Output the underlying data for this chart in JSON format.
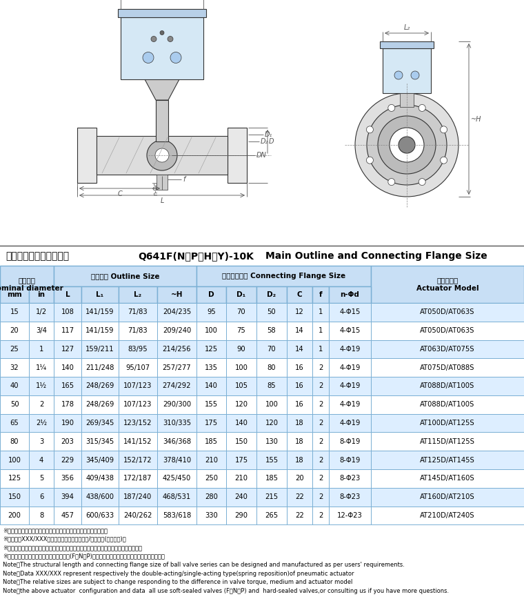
{
  "title_cn": "主要外形及连接法兰尺寸",
  "title_model": "Q641F(N、P、H、Y)-10K",
  "title_en": "Main Outline and Connecting Flange Size",
  "rows": [
    [
      "15",
      "1/2",
      "108",
      "141/159",
      "71/83",
      "204/235",
      "95",
      "70",
      "50",
      "12",
      "1",
      "4-Φ15",
      "AT050D/AT063S"
    ],
    [
      "20",
      "3/4",
      "117",
      "141/159",
      "71/83",
      "209/240",
      "100",
      "75",
      "58",
      "14",
      "1",
      "4-Φ15",
      "AT050D/AT063S"
    ],
    [
      "25",
      "1",
      "127",
      "159/211",
      "83/95",
      "214/256",
      "125",
      "90",
      "70",
      "14",
      "1",
      "4-Φ19",
      "AT063D/AT075S"
    ],
    [
      "32",
      "1¼",
      "140",
      "211/248",
      "95/107",
      "257/277",
      "135",
      "100",
      "80",
      "16",
      "2",
      "4-Φ19",
      "AT075D/AT088S"
    ],
    [
      "40",
      "1½",
      "165",
      "248/269",
      "107/123",
      "274/292",
      "140",
      "105",
      "85",
      "16",
      "2",
      "4-Φ19",
      "AT088D/AT100S"
    ],
    [
      "50",
      "2",
      "178",
      "248/269",
      "107/123",
      "290/300",
      "155",
      "120",
      "100",
      "16",
      "2",
      "4-Φ19",
      "AT088D/AT100S"
    ],
    [
      "65",
      "2½",
      "190",
      "269/345",
      "123/152",
      "310/335",
      "175",
      "140",
      "120",
      "18",
      "2",
      "4-Φ19",
      "AT100D/AT125S"
    ],
    [
      "80",
      "3",
      "203",
      "315/345",
      "141/152",
      "346/368",
      "185",
      "150",
      "130",
      "18",
      "2",
      "8-Φ19",
      "AT115D/AT125S"
    ],
    [
      "100",
      "4",
      "229",
      "345/409",
      "152/172",
      "378/410",
      "210",
      "175",
      "155",
      "18",
      "2",
      "8-Φ19",
      "AT125D/AT145S"
    ],
    [
      "125",
      "5",
      "356",
      "409/438",
      "172/187",
      "425/450",
      "250",
      "210",
      "185",
      "20",
      "2",
      "8-Φ23",
      "AT145D/AT160S"
    ],
    [
      "150",
      "6",
      "394",
      "438/600",
      "187/240",
      "468/531",
      "280",
      "240",
      "215",
      "22",
      "2",
      "8-Φ23",
      "AT160D/AT210S"
    ],
    [
      "200",
      "8",
      "457",
      "600/633",
      "240/262",
      "583/618",
      "330",
      "290",
      "265",
      "22",
      "2",
      "12-Φ23",
      "AT210D/AT240S"
    ]
  ],
  "notes_cn": [
    "※注：系列球阀结构长度及连接法兰尺寸可根据用户要求设计制造。",
    "※注：数据XXX/XXX分别是气动执行器双作用式/单作用式(弹簧复位)。",
    "※注：根据不同阀门扭矩、使用介质适配的执行器型号可能有所不同，相关尺寸随之变化。",
    "※注：以上执行器配置及数据均采用软密封(F、N、P)阀门，硬密封阀门的配置及数据请咨询本公司。"
  ],
  "notes_en": [
    "Note：The structural length and connecting flange size of ball valve series can be designed and manufactured as per users' requirements.",
    "Note：Data XXX/XXX represent respectively the double-acting/single-acting type(spring reposition)of pneumatic actuator",
    "Note：The relative sizes are subject to change responding to the difference in valve torque, medium and actuator model",
    "Note：the above actuator  configuration and data  all use soft-sealed valves (F，N，P) and  hard-sealed valves,or consulting us if you have more questions."
  ],
  "header_bg": "#c8dff5",
  "row_bg_alt": "#ddeeff",
  "row_bg_white": "#ffffff",
  "border_color": "#7aafd4"
}
